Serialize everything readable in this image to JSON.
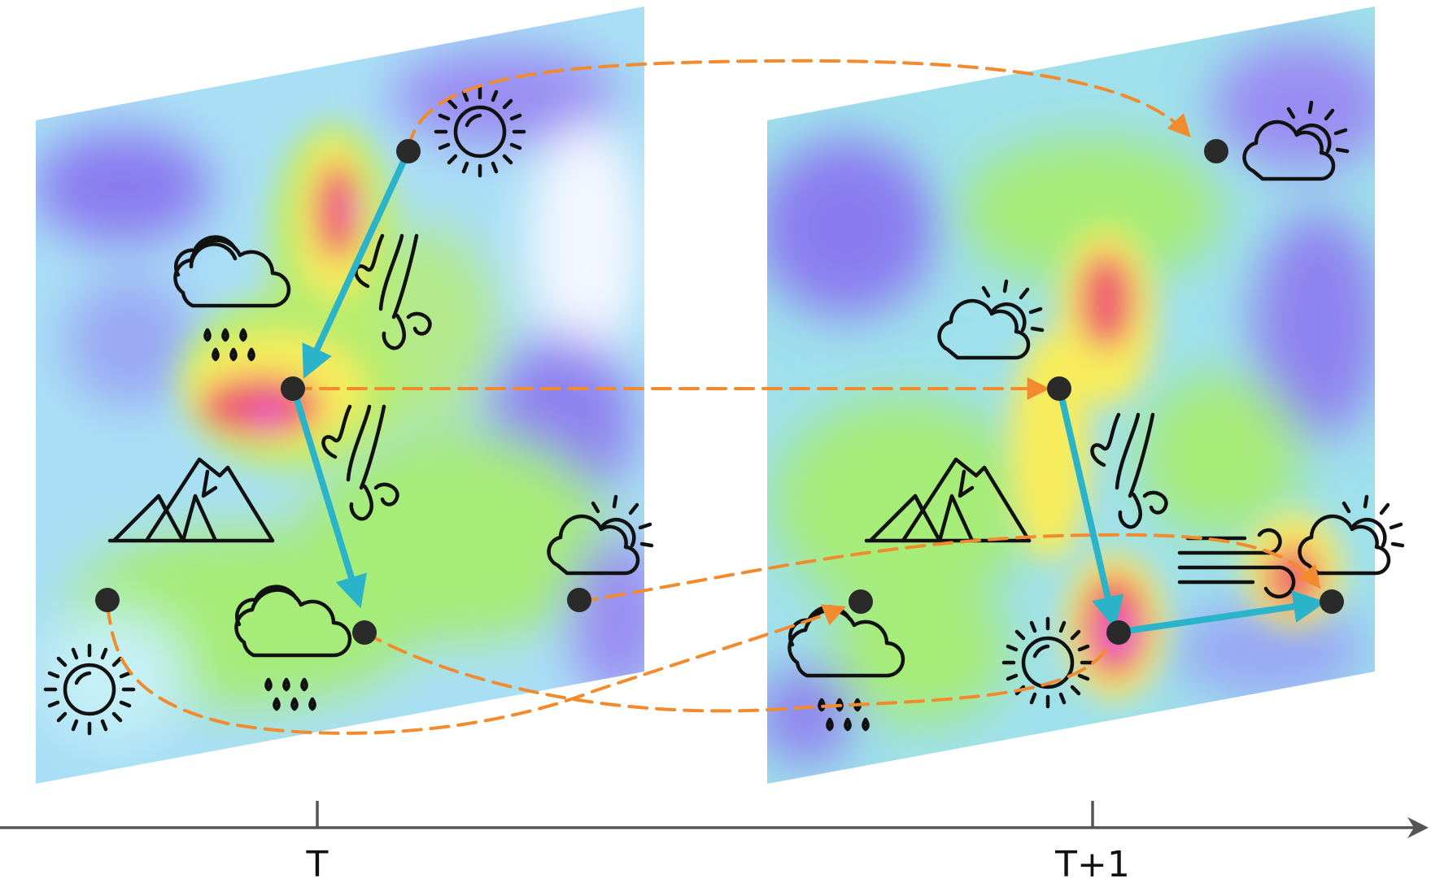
{
  "timeline": {
    "labels": [
      "T",
      "T+1"
    ],
    "axis_color": "#555555"
  },
  "colors": {
    "orange_dashed_link": "#F28A2E",
    "blue_arrow": "#2BB3C9",
    "node": "#2a2a2a",
    "heat_low": "#8a7cf0",
    "heat_mid": "#a6ec78",
    "heat_high": "#f0566c",
    "heat_peak": "#e85be8"
  },
  "icons": {
    "frame_T": [
      "sun-icon",
      "rain-cloud-icon",
      "wind-icon",
      "wind-icon",
      "mountain-icon",
      "partly-cloudy-icon",
      "rain-cloud-icon",
      "sun-icon"
    ],
    "frame_T1": [
      "partly-cloudy-icon",
      "partly-cloudy-icon",
      "wind-icon",
      "mountain-icon",
      "horizontal-wind-icon",
      "partly-cloudy-icon",
      "rain-cloud-icon",
      "sun-icon"
    ]
  }
}
